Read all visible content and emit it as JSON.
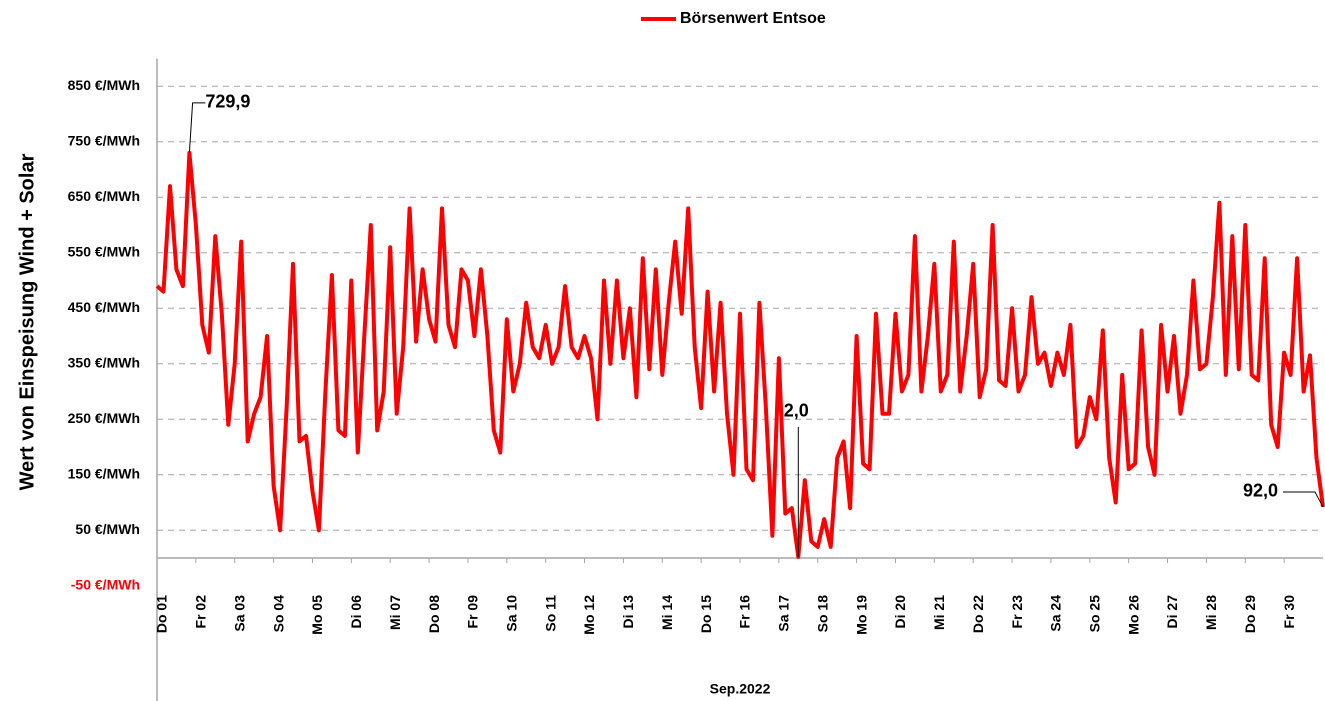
{
  "chart_data": {
    "type": "line",
    "legend": "Börsenwert Entsoe",
    "y_label": "Wert von Einspeisung Wind + Solar",
    "x_label": "Sep.2022",
    "color": "#ff0000",
    "negative_tick_color": "#ff0000",
    "grid": true,
    "xlim": [
      0,
      720
    ],
    "ylim": [
      -50,
      900
    ],
    "yticks": [
      {
        "value": -50,
        "label": "-50 €/MWh"
      },
      {
        "value": 50,
        "label": "50 €/MWh"
      },
      {
        "value": 150,
        "label": "150 €/MWh"
      },
      {
        "value": 250,
        "label": "250 €/MWh"
      },
      {
        "value": 350,
        "label": "350 €/MWh"
      },
      {
        "value": 450,
        "label": "450 €/MWh"
      },
      {
        "value": 550,
        "label": "550 €/MWh"
      },
      {
        "value": 650,
        "label": "650 €/MWh"
      },
      {
        "value": 750,
        "label": "750 €/MWh"
      },
      {
        "value": 850,
        "label": "850 €/MWh"
      }
    ],
    "xticks": [
      {
        "value": 0,
        "label": "Do 01"
      },
      {
        "value": 24,
        "label": "Fr 02"
      },
      {
        "value": 48,
        "label": "Sa 03"
      },
      {
        "value": 72,
        "label": "So 04"
      },
      {
        "value": 96,
        "label": "Mo 05"
      },
      {
        "value": 120,
        "label": "Di 06"
      },
      {
        "value": 144,
        "label": "Mi 07"
      },
      {
        "value": 168,
        "label": "Do 08"
      },
      {
        "value": 192,
        "label": "Fr 09"
      },
      {
        "value": 216,
        "label": "Sa 10"
      },
      {
        "value": 240,
        "label": "So 11"
      },
      {
        "value": 264,
        "label": "Mo 12"
      },
      {
        "value": 288,
        "label": "Di 13"
      },
      {
        "value": 312,
        "label": "Mi 14"
      },
      {
        "value": 336,
        "label": "Do 15"
      },
      {
        "value": 360,
        "label": "Fr 16"
      },
      {
        "value": 384,
        "label": "Sa 17"
      },
      {
        "value": 408,
        "label": "So 18"
      },
      {
        "value": 432,
        "label": "Mo 19"
      },
      {
        "value": 456,
        "label": "Di 20"
      },
      {
        "value": 480,
        "label": "Mi 21"
      },
      {
        "value": 504,
        "label": "Do 22"
      },
      {
        "value": 528,
        "label": "Fr 23"
      },
      {
        "value": 552,
        "label": "Sa 24"
      },
      {
        "value": 576,
        "label": "So 25"
      },
      {
        "value": 600,
        "label": "Mo 26"
      },
      {
        "value": 624,
        "label": "Di 27"
      },
      {
        "value": 648,
        "label": "Mi 28"
      },
      {
        "value": 672,
        "label": "Do 29"
      },
      {
        "value": 696,
        "label": "Fr 30"
      }
    ],
    "x": [
      0,
      4,
      8,
      12,
      16,
      20,
      24,
      28,
      32,
      36,
      40,
      44,
      48,
      52,
      56,
      60,
      64,
      68,
      72,
      76,
      80,
      84,
      88,
      92,
      96,
      100,
      104,
      108,
      112,
      116,
      120,
      124,
      128,
      132,
      136,
      140,
      144,
      148,
      152,
      156,
      160,
      164,
      168,
      172,
      176,
      180,
      184,
      188,
      192,
      196,
      200,
      204,
      208,
      212,
      216,
      220,
      224,
      228,
      232,
      236,
      240,
      244,
      248,
      252,
      256,
      260,
      264,
      268,
      272,
      276,
      280,
      284,
      288,
      292,
      296,
      300,
      304,
      308,
      312,
      316,
      320,
      324,
      328,
      332,
      336,
      340,
      344,
      348,
      352,
      356,
      360,
      364,
      368,
      372,
      376,
      380,
      384,
      388,
      392,
      396,
      400,
      404,
      408,
      412,
      416,
      420,
      424,
      428,
      432,
      436,
      440,
      444,
      448,
      452,
      456,
      460,
      464,
      468,
      472,
      476,
      480,
      484,
      488,
      492,
      496,
      500,
      504,
      508,
      512,
      516,
      520,
      524,
      528,
      532,
      536,
      540,
      544,
      548,
      552,
      556,
      560,
      564,
      568,
      572,
      576,
      580,
      584,
      588,
      592,
      596,
      600,
      604,
      608,
      612,
      616,
      620,
      624,
      628,
      632,
      636,
      640,
      644,
      648,
      652,
      656,
      660,
      664,
      668,
      672,
      676,
      680,
      684,
      688,
      692,
      696,
      700,
      704,
      708,
      712,
      716,
      720
    ],
    "values": [
      490,
      480,
      670,
      520,
      490,
      729.9,
      600,
      420,
      370,
      580,
      440,
      240,
      350,
      570,
      210,
      260,
      290,
      400,
      130,
      50,
      270,
      530,
      210,
      220,
      120,
      50,
      300,
      510,
      230,
      220,
      500,
      190,
      400,
      600,
      230,
      300,
      560,
      260,
      380,
      630,
      390,
      520,
      430,
      390,
      630,
      420,
      380,
      520,
      500,
      400,
      520,
      400,
      230,
      190,
      430,
      300,
      350,
      460,
      380,
      360,
      420,
      350,
      380,
      490,
      380,
      360,
      400,
      360,
      250,
      500,
      350,
      500,
      360,
      450,
      290,
      540,
      340,
      520,
      330,
      460,
      570,
      440,
      630,
      380,
      270,
      480,
      300,
      460,
      260,
      150,
      440,
      160,
      140,
      460,
      270,
      40,
      360,
      80,
      90,
      2,
      140,
      30,
      20,
      70,
      20,
      180,
      210,
      90,
      400,
      170,
      160,
      440,
      260,
      260,
      440,
      300,
      330,
      580,
      300,
      400,
      530,
      300,
      330,
      570,
      300,
      400,
      530,
      290,
      340,
      600,
      320,
      310,
      450,
      300,
      330,
      470,
      350,
      370,
      310,
      370,
      330,
      420,
      200,
      220,
      290,
      250,
      410,
      180,
      100,
      330,
      160,
      170,
      410,
      200,
      150,
      420,
      300,
      400,
      260,
      330,
      500,
      340,
      350,
      470,
      640,
      330,
      580,
      340,
      600,
      330,
      320,
      540,
      240,
      200,
      370,
      330,
      540,
      300,
      365,
      180,
      92
    ],
    "annotations": [
      {
        "text": "729,9",
        "x": 20,
        "y": 729.9
      },
      {
        "text": "2,0",
        "x": 396,
        "y": 2
      },
      {
        "text": "92,0",
        "x": 720,
        "y": 92
      }
    ]
  }
}
